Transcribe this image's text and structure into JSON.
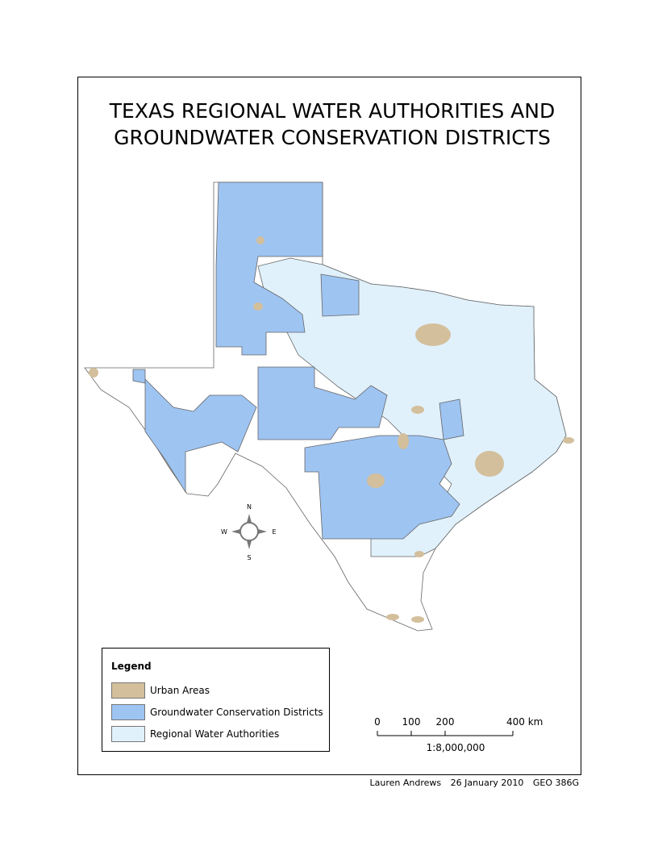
{
  "title": [
    "TEXAS REGIONAL WATER AUTHORITIES AND",
    "GROUNDWATER CONSERVATION DISTRICTS"
  ],
  "legend": {
    "title": "Legend",
    "items": [
      {
        "label": "Urban Areas",
        "color": "#d3bf9b"
      },
      {
        "label": "Groundwater Conservation Districts",
        "color": "#9ec4f2"
      },
      {
        "label": "Regional Water Authorities",
        "color": "#e0f1fc"
      }
    ]
  },
  "scale_bar": {
    "ticks": [
      0,
      100,
      200,
      {
        "value": 400,
        "label": "400 km"
      }
    ],
    "ratio": "1:8,000,000"
  },
  "compass": {
    "north": "N",
    "south": "S",
    "east": "E",
    "west": "W"
  },
  "footer": {
    "author": "Lauren Andrews",
    "date": "26 January 2010",
    "course": "GEO 386G"
  }
}
